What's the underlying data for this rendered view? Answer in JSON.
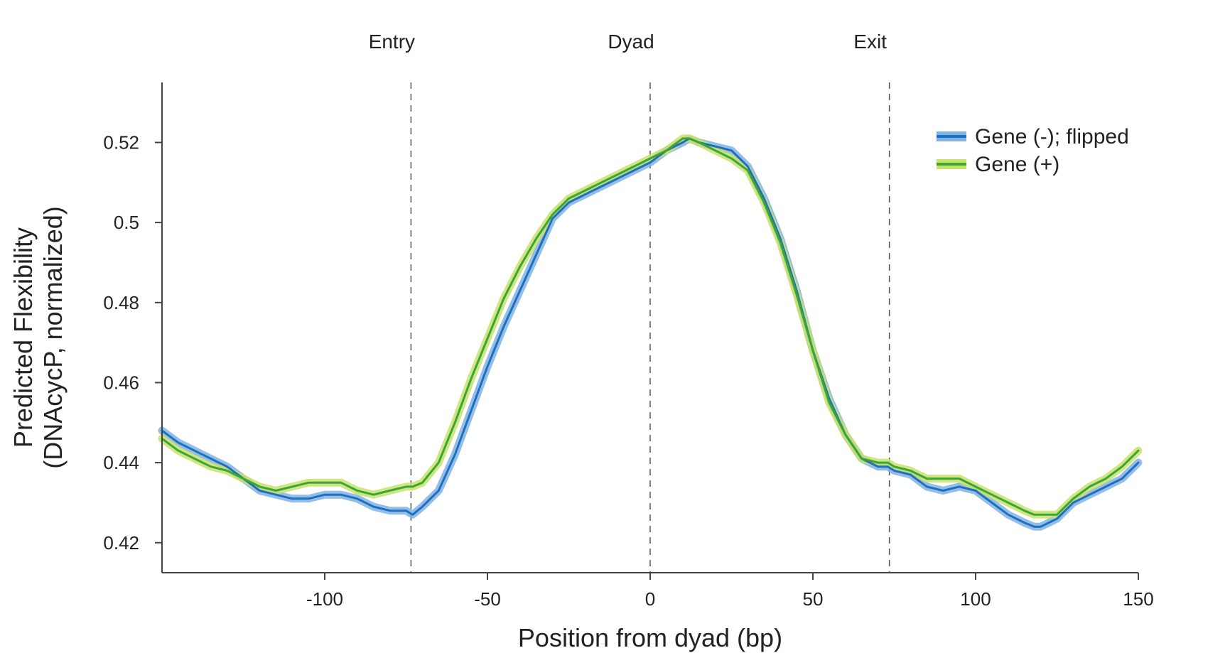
{
  "chart_data": {
    "type": "line",
    "title": "",
    "xlabel": "Position from dyad (bp)",
    "ylabel_line1": "Predicted Flexibility",
    "ylabel_line2": "(DNAcycP, normalized)",
    "xlim": [
      -150,
      150
    ],
    "ylim": [
      0.4125,
      0.535
    ],
    "grid": false,
    "legend_position": "top-right",
    "x_ticks": [
      {
        "value": -100,
        "label": "-100"
      },
      {
        "value": -50,
        "label": "-50"
      },
      {
        "value": 0,
        "label": "0"
      },
      {
        "value": 50,
        "label": "50"
      },
      {
        "value": 100,
        "label": "100"
      },
      {
        "value": 150,
        "label": "150"
      }
    ],
    "y_ticks": [
      {
        "value": 0.42,
        "label": "0.42"
      },
      {
        "value": 0.44,
        "label": "0.44"
      },
      {
        "value": 0.46,
        "label": "0.46"
      },
      {
        "value": 0.48,
        "label": "0.48"
      },
      {
        "value": 0.5,
        "label": "0.5"
      },
      {
        "value": 0.52,
        "label": "0.52"
      }
    ],
    "markers": [
      {
        "x": -73.5,
        "label": "Entry"
      },
      {
        "x": 0,
        "label": "Dyad"
      },
      {
        "x": 73.5,
        "label": "Exit"
      }
    ],
    "series": [
      {
        "name": "Gene (-); flipped",
        "line_color": "#1f6fc0",
        "band_color": "#7fb3e3",
        "x": [
          -150,
          -145,
          -140,
          -135,
          -130,
          -125,
          -120,
          -115,
          -110,
          -105,
          -100,
          -95,
          -90,
          -85,
          -80,
          -75,
          -73,
          -70,
          -65,
          -60,
          -55,
          -50,
          -45,
          -40,
          -35,
          -30,
          -25,
          -20,
          -15,
          -10,
          -5,
          0,
          5,
          10,
          12,
          15,
          20,
          25,
          30,
          35,
          40,
          45,
          50,
          55,
          60,
          65,
          70,
          73,
          75,
          80,
          85,
          90,
          95,
          100,
          105,
          110,
          115,
          118,
          120,
          125,
          130,
          135,
          140,
          145,
          150
        ],
        "y": [
          0.448,
          0.445,
          0.443,
          0.441,
          0.439,
          0.436,
          0.433,
          0.432,
          0.431,
          0.431,
          0.432,
          0.432,
          0.431,
          0.429,
          0.428,
          0.428,
          0.427,
          0.429,
          0.433,
          0.442,
          0.453,
          0.464,
          0.474,
          0.483,
          0.492,
          0.501,
          0.505,
          0.507,
          0.509,
          0.511,
          0.513,
          0.515,
          0.518,
          0.52,
          0.521,
          0.52,
          0.519,
          0.518,
          0.514,
          0.506,
          0.496,
          0.483,
          0.468,
          0.456,
          0.447,
          0.441,
          0.439,
          0.439,
          0.438,
          0.437,
          0.434,
          0.433,
          0.434,
          0.433,
          0.43,
          0.427,
          0.425,
          0.424,
          0.424,
          0.426,
          0.43,
          0.432,
          0.434,
          0.436,
          0.44
        ]
      },
      {
        "name": "Gene (+)",
        "line_color": "#3aa63a",
        "band_color": "#c8e26a",
        "x": [
          -150,
          -145,
          -140,
          -135,
          -130,
          -125,
          -120,
          -115,
          -110,
          -105,
          -100,
          -95,
          -90,
          -85,
          -80,
          -75,
          -73,
          -70,
          -65,
          -60,
          -55,
          -50,
          -45,
          -40,
          -35,
          -30,
          -25,
          -20,
          -15,
          -10,
          -5,
          0,
          5,
          10,
          12,
          15,
          20,
          25,
          30,
          35,
          40,
          45,
          50,
          55,
          60,
          65,
          70,
          73,
          75,
          80,
          85,
          90,
          95,
          100,
          105,
          110,
          115,
          118,
          120,
          125,
          130,
          135,
          140,
          145,
          150
        ],
        "y": [
          0.446,
          0.443,
          0.441,
          0.439,
          0.438,
          0.436,
          0.434,
          0.433,
          0.434,
          0.435,
          0.435,
          0.435,
          0.433,
          0.432,
          0.433,
          0.434,
          0.434,
          0.435,
          0.44,
          0.45,
          0.461,
          0.471,
          0.481,
          0.489,
          0.496,
          0.502,
          0.506,
          0.508,
          0.51,
          0.512,
          0.514,
          0.516,
          0.518,
          0.521,
          0.521,
          0.52,
          0.518,
          0.516,
          0.513,
          0.505,
          0.495,
          0.482,
          0.468,
          0.455,
          0.447,
          0.441,
          0.44,
          0.44,
          0.439,
          0.438,
          0.436,
          0.436,
          0.436,
          0.434,
          0.432,
          0.43,
          0.428,
          0.427,
          0.427,
          0.427,
          0.431,
          0.434,
          0.436,
          0.439,
          0.443
        ]
      }
    ]
  }
}
